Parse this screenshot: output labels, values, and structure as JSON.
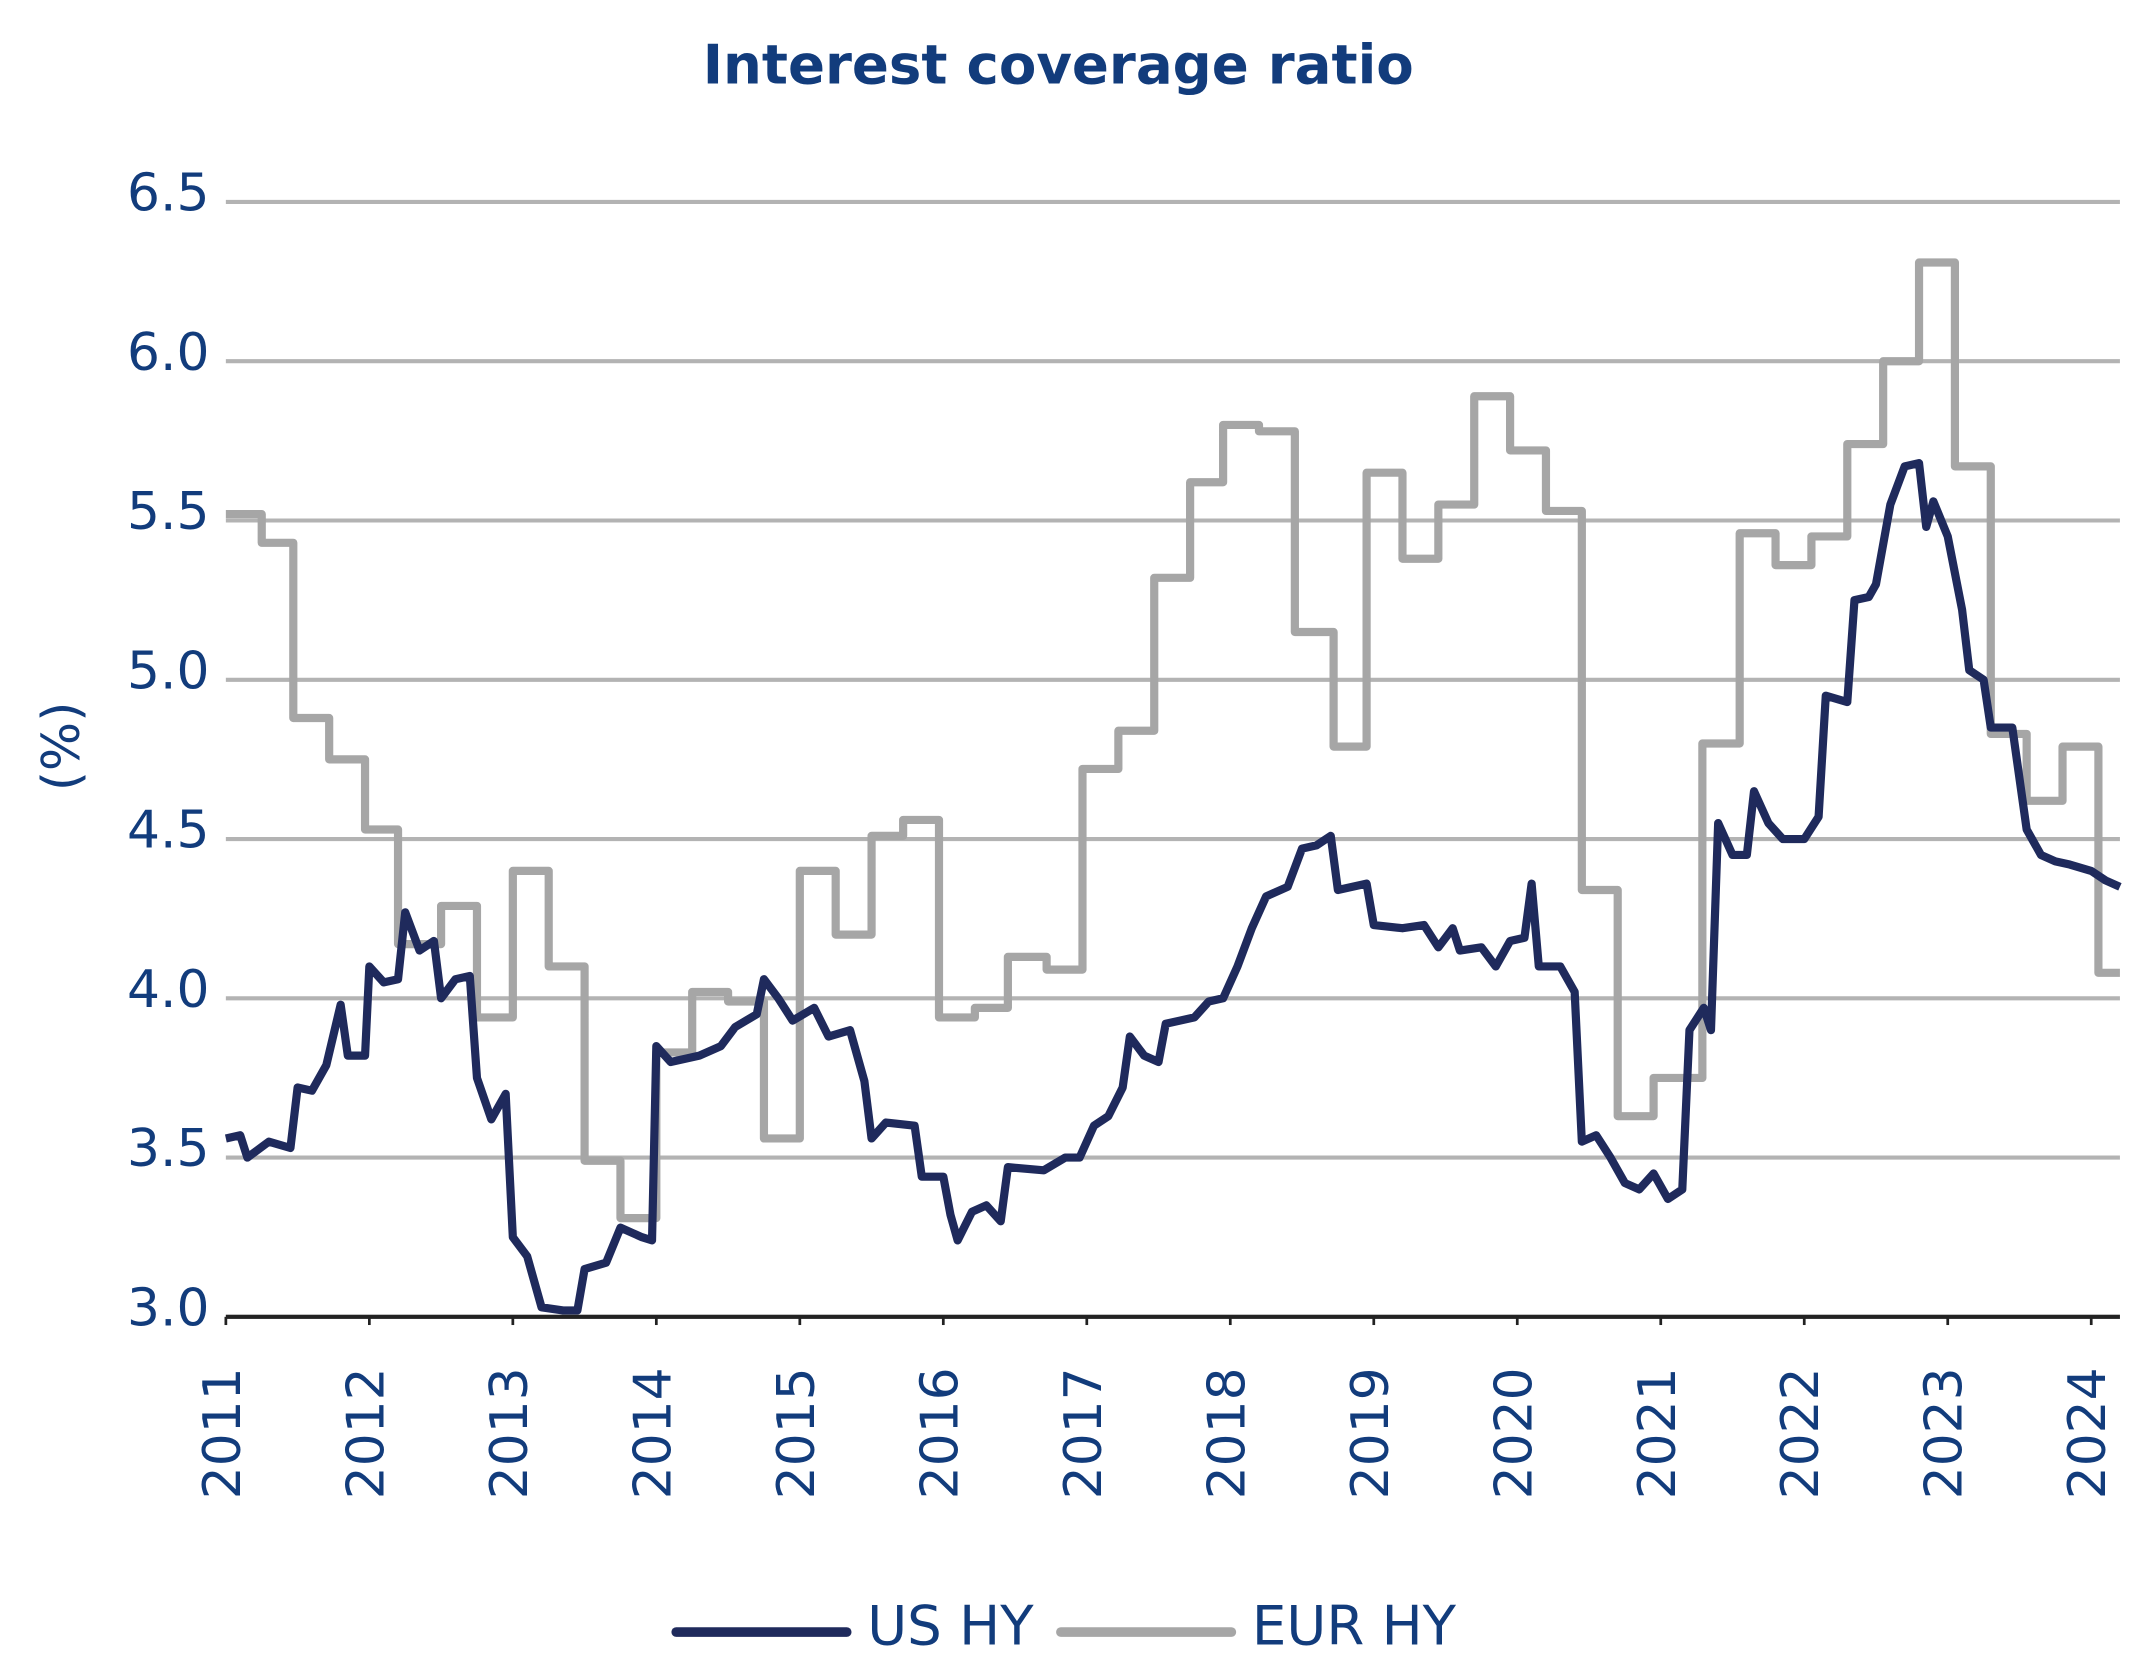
{
  "chart_data": {
    "type": "line",
    "title": "Interest coverage ratio",
    "y_label": "(%)",
    "xlim": [
      2011,
      2024.2
    ],
    "xticks": [
      2011,
      2012,
      2013,
      2014,
      2015,
      2016,
      2017,
      2018,
      2019,
      2020,
      2021,
      2022,
      2023,
      2024
    ],
    "ylim": [
      3.0,
      6.5
    ],
    "yticks": [
      {
        "value": 3,
        "label": "3.0"
      },
      3.5,
      {
        "value": 4,
        "label": "4.0"
      },
      4.5,
      {
        "value": 5,
        "label": "5.0"
      },
      5.5,
      {
        "value": 6,
        "label": "6.0"
      },
      6.5
    ],
    "grid": true,
    "legend": "bottom",
    "series": [
      {
        "name": "US HY",
        "color": "#1f2a5c",
        "x": [
          2011.0,
          2011.1,
          2011.15,
          2011.3,
          2011.45,
          2011.5,
          2011.6,
          2011.7,
          2011.8,
          2011.85,
          2011.97,
          2012.0,
          2012.1,
          2012.2,
          2012.25,
          2012.35,
          2012.45,
          2012.5,
          2012.6,
          2012.7,
          2012.75,
          2012.85,
          2012.95,
          2013.0,
          2013.1,
          2013.2,
          2013.35,
          2013.45,
          2013.5,
          2013.65,
          2013.75,
          2013.9,
          2013.97,
          2014.0,
          2014.1,
          2014.3,
          2014.45,
          2014.55,
          2014.7,
          2014.75,
          2014.85,
          2014.95,
          2015.1,
          2015.2,
          2015.35,
          2015.45,
          2015.5,
          2015.6,
          2015.8,
          2015.85,
          2016.0,
          2016.05,
          2016.1,
          2016.2,
          2016.3,
          2016.4,
          2016.45,
          2016.7,
          2016.85,
          2016.95,
          2017.05,
          2017.15,
          2017.25,
          2017.3,
          2017.4,
          2017.5,
          2017.55,
          2017.75,
          2017.85,
          2017.95,
          2018.05,
          2018.15,
          2018.25,
          2018.4,
          2018.5,
          2018.6,
          2018.7,
          2018.75,
          2018.95,
          2019.0,
          2019.2,
          2019.35,
          2019.45,
          2019.55,
          2019.6,
          2019.75,
          2019.85,
          2019.95,
          2020.05,
          2020.1,
          2020.15,
          2020.3,
          2020.4,
          2020.45,
          2020.55,
          2020.65,
          2020.75,
          2020.85,
          2020.95,
          2021.05,
          2021.15,
          2021.2,
          2021.3,
          2021.35,
          2021.4,
          2021.5,
          2021.6,
          2021.65,
          2021.75,
          2021.85,
          2022.0,
          2022.1,
          2022.15,
          2022.3,
          2022.35,
          2022.45,
          2022.5,
          2022.6,
          2022.7,
          2022.8,
          2022.85,
          2022.9,
          2023.0,
          2023.1,
          2023.15,
          2023.25,
          2023.3,
          2023.45,
          2023.55,
          2023.65,
          2023.75,
          2023.85,
          2024.0,
          2024.1,
          2024.2
        ],
        "values": [
          3.56,
          3.57,
          3.5,
          3.55,
          3.53,
          3.72,
          3.71,
          3.79,
          3.98,
          3.82,
          3.82,
          4.1,
          4.05,
          4.06,
          4.27,
          4.15,
          4.18,
          4.0,
          4.06,
          4.07,
          3.75,
          3.62,
          3.7,
          3.25,
          3.19,
          3.03,
          3.02,
          3.02,
          3.15,
          3.17,
          3.28,
          3.25,
          3.24,
          3.85,
          3.8,
          3.82,
          3.85,
          3.91,
          3.95,
          4.06,
          4.0,
          3.93,
          3.97,
          3.88,
          3.9,
          3.74,
          3.56,
          3.61,
          3.6,
          3.44,
          3.44,
          3.32,
          3.24,
          3.33,
          3.35,
          3.3,
          3.47,
          3.46,
          3.5,
          3.5,
          3.6,
          3.63,
          3.72,
          3.88,
          3.82,
          3.8,
          3.92,
          3.94,
          3.99,
          4.0,
          4.1,
          4.22,
          4.32,
          4.35,
          4.47,
          4.48,
          4.51,
          4.34,
          4.36,
          4.23,
          4.22,
          4.23,
          4.16,
          4.22,
          4.15,
          4.16,
          4.1,
          4.18,
          4.19,
          4.36,
          4.1,
          4.1,
          4.02,
          3.55,
          3.57,
          3.5,
          3.42,
          3.4,
          3.45,
          3.37,
          3.4,
          3.9,
          3.97,
          3.9,
          4.55,
          4.45,
          4.45,
          4.65,
          4.55,
          4.5,
          4.5,
          4.57,
          4.95,
          4.93,
          5.25,
          5.26,
          5.3,
          5.55,
          5.67,
          5.68,
          5.48,
          5.56,
          5.45,
          5.22,
          5.03,
          5.0,
          4.85,
          4.85,
          4.53,
          4.45,
          4.43,
          4.42,
          4.4,
          4.37,
          4.35
        ]
      },
      {
        "name": "EUR HY",
        "color": "#a6a6a6",
        "x": [
          2011.0,
          2011.25,
          2011.25,
          2011.47,
          2011.47,
          2011.72,
          2011.72,
          2011.97,
          2011.97,
          2012.2,
          2012.2,
          2012.5,
          2012.5,
          2012.75,
          2012.75,
          2013.0,
          2013.0,
          2013.25,
          2013.25,
          2013.5,
          2013.5,
          2013.75,
          2013.75,
          2014.0,
          2014.0,
          2014.25,
          2014.25,
          2014.5,
          2014.5,
          2014.75,
          2014.75,
          2015.0,
          2015.0,
          2015.25,
          2015.25,
          2015.5,
          2015.5,
          2015.72,
          2015.72,
          2015.97,
          2015.97,
          2016.22,
          2016.22,
          2016.45,
          2016.45,
          2016.72,
          2016.72,
          2016.97,
          2016.97,
          2017.22,
          2017.22,
          2017.47,
          2017.47,
          2017.72,
          2017.72,
          2017.95,
          2017.95,
          2018.2,
          2018.2,
          2018.45,
          2018.45,
          2018.72,
          2018.72,
          2018.95,
          2018.95,
          2019.2,
          2019.2,
          2019.45,
          2019.45,
          2019.7,
          2019.7,
          2019.95,
          2019.95,
          2020.2,
          2020.2,
          2020.45,
          2020.45,
          2020.7,
          2020.7,
          2020.95,
          2020.95,
          2021.29,
          2021.29,
          2021.55,
          2021.55,
          2021.8,
          2021.8,
          2022.05,
          2022.05,
          2022.3,
          2022.3,
          2022.55,
          2022.55,
          2022.8,
          2022.8,
          2023.05,
          2023.05,
          2023.3,
          2023.3,
          2023.55,
          2023.55,
          2023.8,
          2023.8,
          2024.05,
          2024.05,
          2024.2
        ],
        "values": [
          5.52,
          5.52,
          5.43,
          5.43,
          4.88,
          4.88,
          4.75,
          4.75,
          4.53,
          4.53,
          4.17,
          4.17,
          4.29,
          4.29,
          3.94,
          3.94,
          4.4,
          4.4,
          4.1,
          4.1,
          3.49,
          3.49,
          3.31,
          3.31,
          3.83,
          3.83,
          4.02,
          4.02,
          3.99,
          3.99,
          3.56,
          3.56,
          4.4,
          4.4,
          4.2,
          4.2,
          4.51,
          4.51,
          4.56,
          4.56,
          3.94,
          3.94,
          3.97,
          3.97,
          4.13,
          4.13,
          4.09,
          4.09,
          4.72,
          4.72,
          4.84,
          4.84,
          5.32,
          5.32,
          5.62,
          5.62,
          5.8,
          5.8,
          5.78,
          5.78,
          5.15,
          5.15,
          4.79,
          4.79,
          5.65,
          5.65,
          5.38,
          5.38,
          5.55,
          5.55,
          5.89,
          5.89,
          5.72,
          5.72,
          5.53,
          5.53,
          4.34,
          4.34,
          3.63,
          3.63,
          3.75,
          3.75,
          4.8,
          4.8,
          5.46,
          5.46,
          5.36,
          5.36,
          5.45,
          5.45,
          5.74,
          5.74,
          6.0,
          6.0,
          6.31,
          6.31,
          5.67,
          5.67,
          4.83,
          4.83,
          4.62,
          4.62,
          4.79,
          4.79,
          4.08,
          4.08
        ]
      }
    ]
  }
}
